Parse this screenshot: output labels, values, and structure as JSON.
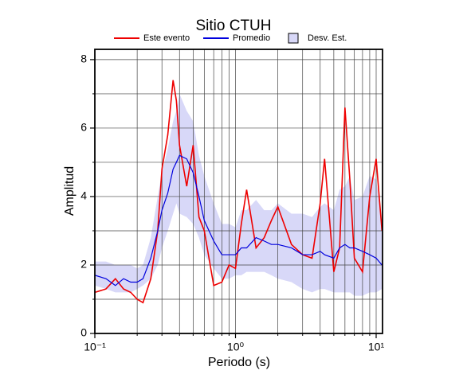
{
  "chart_data": {
    "type": "line",
    "title": "Sitio CTUH",
    "xlabel": "Periodo (s)",
    "ylabel": "Amplitud",
    "xscale": "log",
    "grid": true,
    "xlim": [
      0.1,
      11.1
    ],
    "ylim": [
      0,
      8.3
    ],
    "xticks": [
      {
        "value": 0.1,
        "label": "10⁻¹"
      },
      {
        "value": 1,
        "label": "10⁰"
      },
      {
        "value": 10,
        "label": "10¹"
      }
    ],
    "xminor": [
      0.2,
      0.3,
      0.4,
      0.5,
      0.6,
      0.7,
      0.8,
      0.9,
      2,
      3,
      4,
      5,
      6,
      7,
      8,
      9
    ],
    "yticks": [
      0,
      2,
      4,
      6,
      8
    ],
    "yminor": [
      1,
      3,
      5,
      7
    ],
    "x": [
      0.1,
      0.12,
      0.14,
      0.16,
      0.18,
      0.2,
      0.22,
      0.25,
      0.28,
      0.3,
      0.33,
      0.36,
      0.38,
      0.4,
      0.45,
      0.5,
      0.55,
      0.6,
      0.7,
      0.8,
      0.9,
      1.0,
      1.1,
      1.2,
      1.4,
      1.6,
      1.8,
      2.0,
      2.5,
      3,
      3.5,
      4,
      4.3,
      5,
      5.5,
      6,
      6.5,
      7,
      8,
      9,
      10,
      11
    ],
    "band": {
      "name": "Desv. Est.",
      "color": "#d8d8f8",
      "lower": [
        1.4,
        1.3,
        1.2,
        1.2,
        1.2,
        1.3,
        1.4,
        1.6,
        2.0,
        2.5,
        3.0,
        3.5,
        3.8,
        3.5,
        3.4,
        3.2,
        2.8,
        2.3,
        1.9,
        1.6,
        1.6,
        1.7,
        1.7,
        1.8,
        1.8,
        1.8,
        1.7,
        1.6,
        1.5,
        1.3,
        1.2,
        1.3,
        1.3,
        1.2,
        1.2,
        1.2,
        1.2,
        1.1,
        1.1,
        1.2,
        1.2,
        1.3
      ],
      "upper": [
        2.1,
        2.1,
        2.0,
        2.0,
        2.0,
        1.9,
        2.0,
        2.8,
        4.0,
        4.7,
        5.4,
        6.2,
        6.5,
        7.0,
        6.5,
        6.2,
        5.2,
        4.6,
        3.8,
        3.2,
        3.2,
        3.1,
        3.6,
        3.6,
        3.9,
        3.6,
        3.6,
        3.8,
        3.5,
        3.5,
        3.4,
        3.7,
        3.8,
        3.6,
        4.2,
        4.3,
        4.6,
        3.9,
        4.0,
        4.6,
        4.5,
        3.2
      ]
    },
    "series": [
      {
        "name": "Este evento",
        "color": "#ee0000",
        "values": [
          1.2,
          1.3,
          1.6,
          1.3,
          1.2,
          1.0,
          0.9,
          1.6,
          3.0,
          4.8,
          5.8,
          7.4,
          6.8,
          5.5,
          4.3,
          5.5,
          3.4,
          3.0,
          1.4,
          1.5,
          2.0,
          1.9,
          3.2,
          4.2,
          2.5,
          2.8,
          3.3,
          3.7,
          2.6,
          2.3,
          2.2,
          3.8,
          5.1,
          1.8,
          2.5,
          6.6,
          4.5,
          2.2,
          1.8,
          4.0,
          5.1,
          3.0
        ]
      },
      {
        "name": "Promedio",
        "color": "#0000dd",
        "values": [
          1.7,
          1.6,
          1.4,
          1.6,
          1.5,
          1.5,
          1.6,
          2.2,
          3.0,
          3.6,
          4.1,
          4.8,
          5.0,
          5.2,
          5.1,
          4.7,
          4.0,
          3.3,
          2.7,
          2.3,
          2.3,
          2.3,
          2.5,
          2.5,
          2.8,
          2.7,
          2.6,
          2.6,
          2.5,
          2.3,
          2.3,
          2.4,
          2.3,
          2.2,
          2.5,
          2.6,
          2.5,
          2.5,
          2.4,
          2.3,
          2.2,
          2.0
        ]
      }
    ]
  }
}
